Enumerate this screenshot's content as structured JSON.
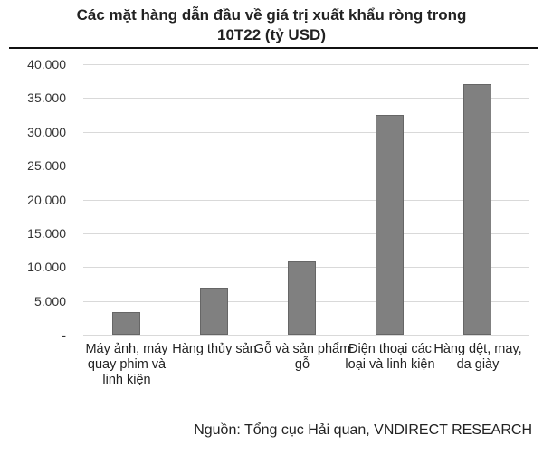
{
  "chart_data": {
    "type": "bar",
    "title": "Các mặt hàng dẫn đầu về giá trị xuất khẩu ròng trong 10T22 (tỷ USD)",
    "title_lines": [
      "Các mặt hàng dẫn đầu về giá trị xuất khẩu ròng trong",
      "10T22 (tỷ USD)"
    ],
    "categories": [
      "Máy ảnh, máy quay phim và linh kiện",
      "Hàng thủy sản",
      "Gỗ và sản phẩm gỗ",
      "Điện thoại các loại và linh kiện",
      "Hàng dệt, may, da giày"
    ],
    "values": [
      3400,
      7000,
      10800,
      32500,
      37000
    ],
    "xlabel": "",
    "ylabel": "",
    "ylim": [
      0,
      40000
    ],
    "yticks": [
      "-",
      "5.000",
      "10.000",
      "15.000",
      "20.000",
      "25.000",
      "30.000",
      "35.000",
      "40.000"
    ],
    "grid": true,
    "legend": null,
    "bar_color": "#808080",
    "source": "Nguồn: Tổng cục Hải quan, VNDIRECT RESEARCH"
  }
}
